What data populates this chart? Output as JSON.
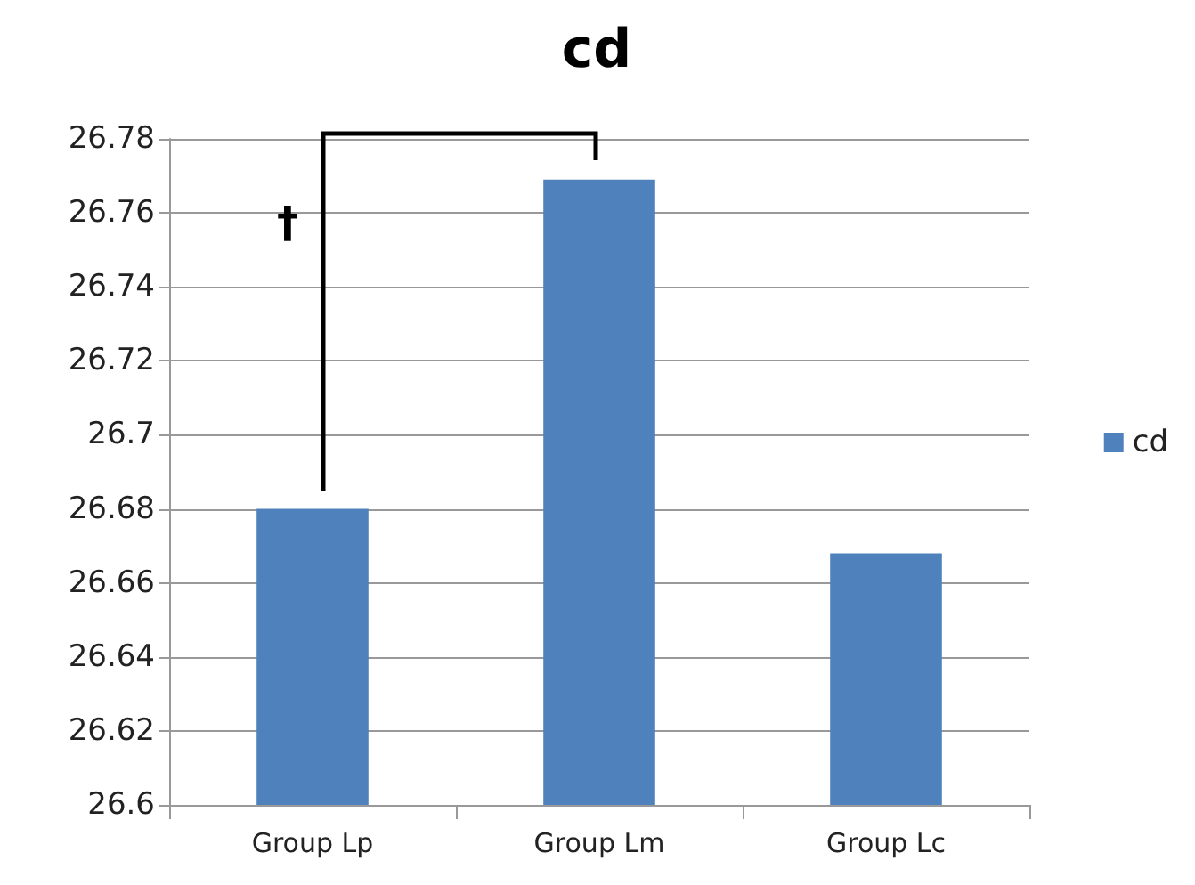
{
  "chart_data": {
    "type": "bar",
    "title": "cd",
    "categories": [
      "Group Lp",
      "Group Lm",
      "Group Lc"
    ],
    "series": [
      {
        "name": "cd",
        "color": "#4f81bd",
        "values": [
          26.68,
          26.769,
          26.668
        ]
      }
    ],
    "ylim": [
      26.6,
      26.78
    ],
    "yticks": [
      26.6,
      26.62,
      26.64,
      26.66,
      26.68,
      26.7,
      26.72,
      26.74,
      26.76,
      26.78
    ],
    "grid": "y",
    "legend": "right",
    "annotations": [
      "†"
    ]
  }
}
